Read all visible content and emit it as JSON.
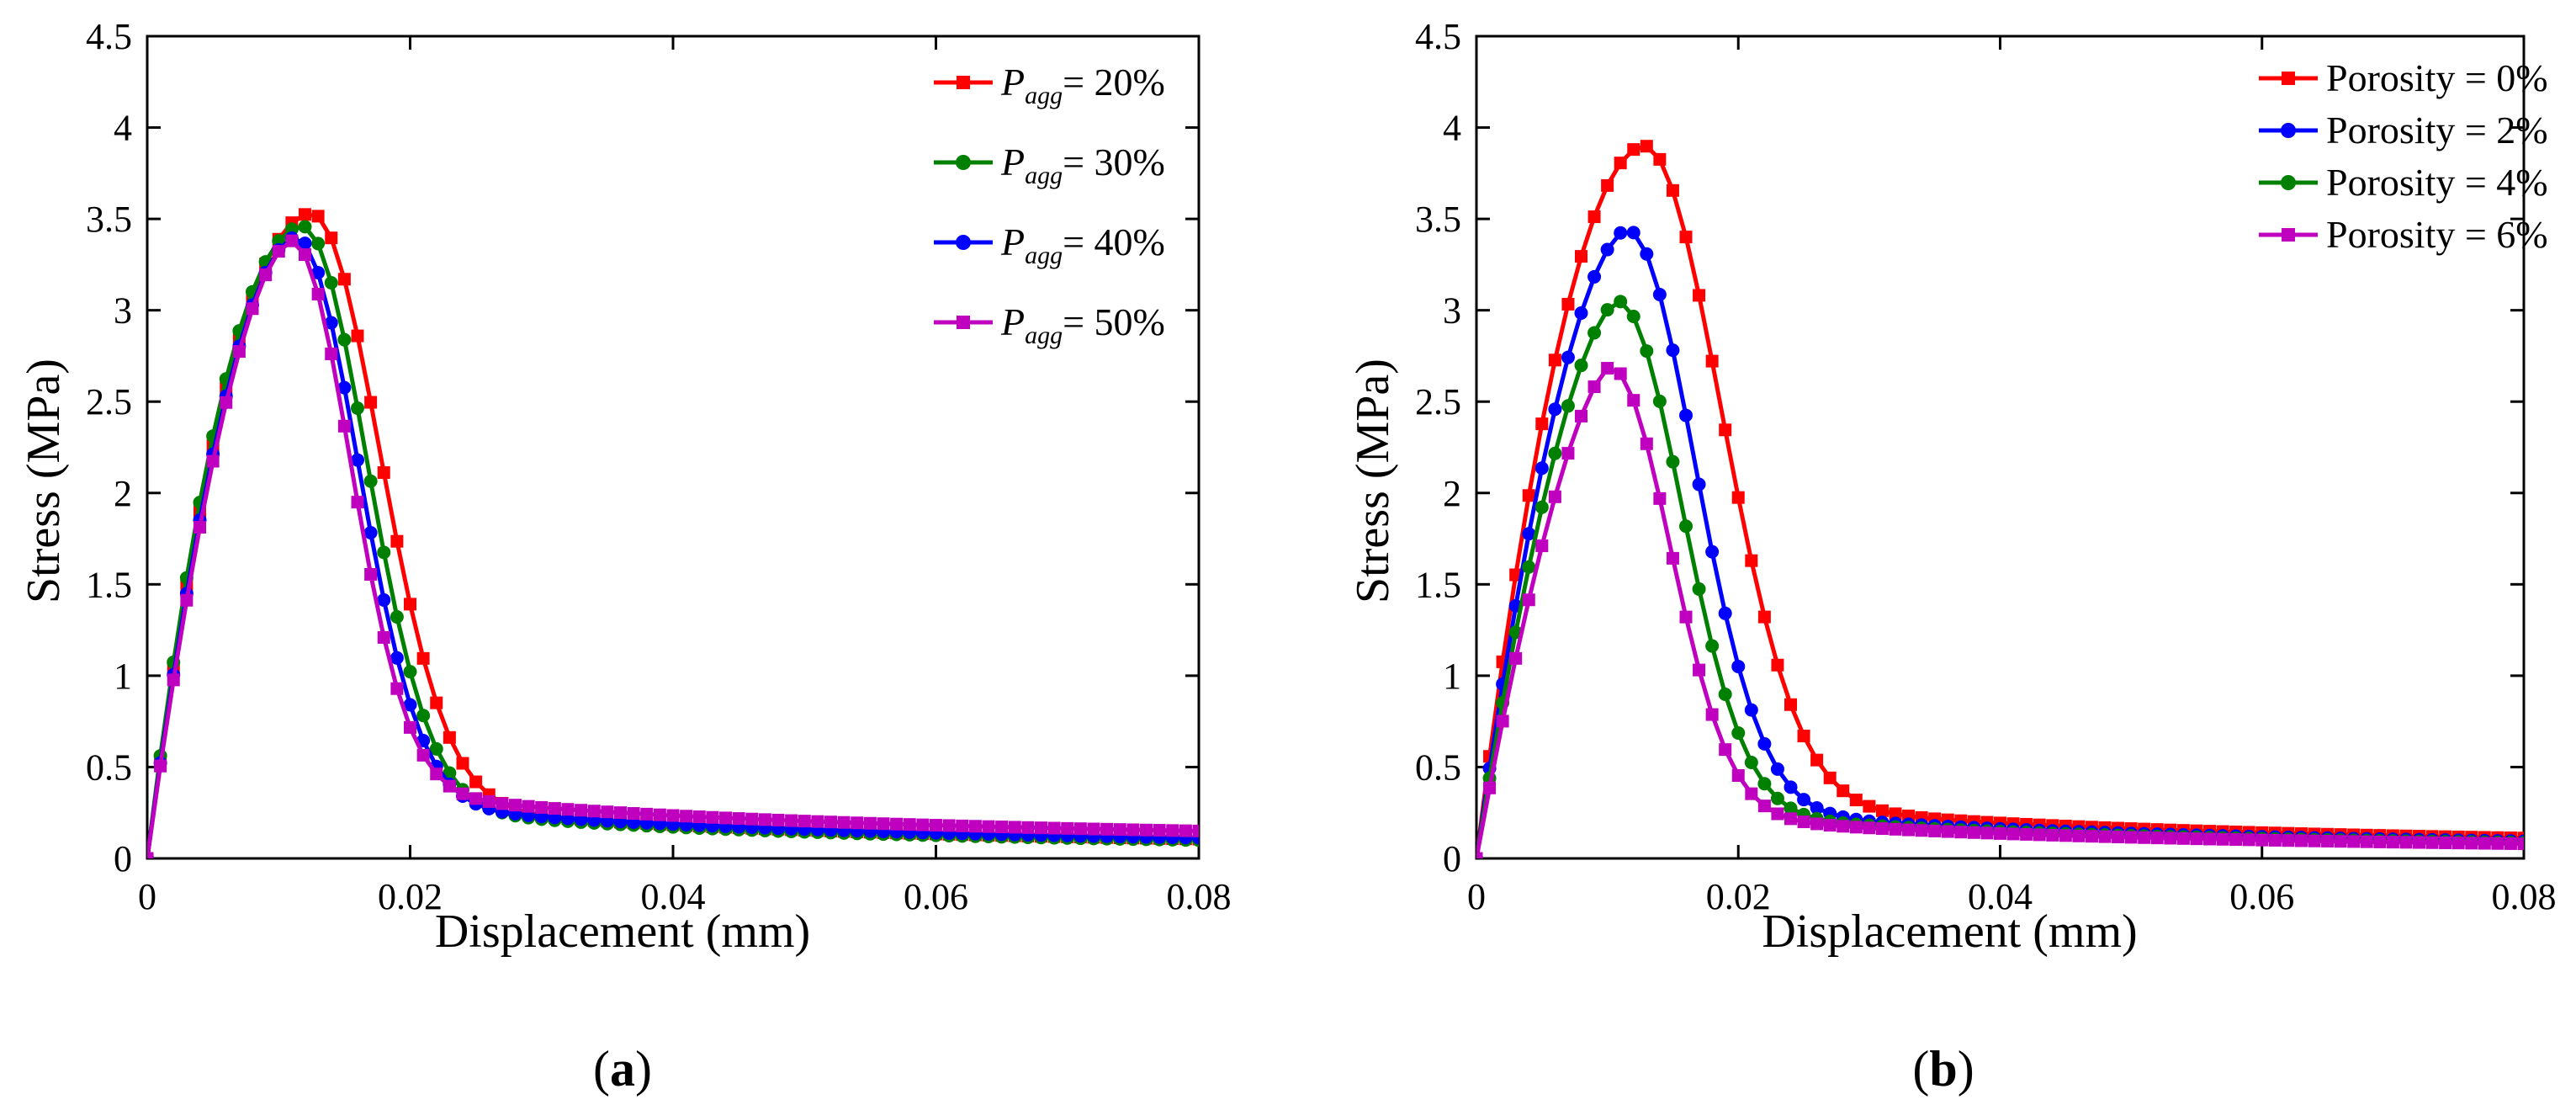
{
  "panels": [
    {
      "id": "a",
      "caption": "(a)",
      "chart_data": {
        "type": "line",
        "xlabel": "Displacement (mm)",
        "ylabel": "Stress (MPa)",
        "xlim": [
          0,
          0.08
        ],
        "ylim": [
          0,
          4.5
        ],
        "xticks": [
          0,
          0.02,
          0.04,
          0.06,
          0.08
        ],
        "xtick_labels": [
          "0",
          "0.02",
          "0.04",
          "0.06",
          "0.08"
        ],
        "yticks": [
          0,
          0.5,
          1,
          1.5,
          2,
          2.5,
          3,
          3.5,
          4,
          4.5
        ],
        "ytick_labels": [
          "0",
          "0.5",
          "1",
          "1.5",
          "2",
          "2.5",
          "3",
          "3.5",
          "4",
          "4.5"
        ],
        "legend_position": "top-right",
        "series": [
          {
            "name_main": "P",
            "name_sub": "agg",
            "name_tail": "= 20%",
            "color": "#ff0000",
            "marker": "square",
            "peak_x": 0.0125,
            "peak_y": 3.53,
            "rise_exp": 2.0,
            "fall_width": 0.0072,
            "residual": 0.4,
            "tail_exp": 0.9
          },
          {
            "name_main": "P",
            "name_sub": "agg",
            "name_tail": "= 30%",
            "color": "#008000",
            "marker": "circle",
            "peak_x": 0.0118,
            "peak_y": 3.46,
            "rise_exp": 2.0,
            "fall_width": 0.0068,
            "residual": 0.38,
            "tail_exp": 0.9
          },
          {
            "name_main": "P",
            "name_sub": "agg",
            "name_tail": "= 40%",
            "color": "#0000ff",
            "marker": "circle",
            "peak_x": 0.0113,
            "peak_y": 3.4,
            "rise_exp": 1.8,
            "fall_width": 0.0066,
            "residual": 0.4,
            "tail_exp": 0.85
          },
          {
            "name_main": "P",
            "name_sub": "agg",
            "name_tail": "= 50%",
            "color": "#bf00bf",
            "marker": "square",
            "peak_x": 0.011,
            "peak_y": 3.38,
            "rise_exp": 1.7,
            "fall_width": 0.0062,
            "residual": 0.46,
            "tail_exp": 0.75
          }
        ]
      }
    },
    {
      "id": "b",
      "caption": "(b)",
      "chart_data": {
        "type": "line",
        "xlabel": "Displacement (mm)",
        "ylabel": "Stress (MPa)",
        "xlim": [
          0,
          0.08
        ],
        "ylim": [
          0,
          4.5
        ],
        "xticks": [
          0,
          0.02,
          0.04,
          0.06,
          0.08
        ],
        "xtick_labels": [
          "0",
          "0.02",
          "0.04",
          "0.06",
          "0.08"
        ],
        "yticks": [
          0,
          0.5,
          1,
          1.5,
          2,
          2.5,
          3,
          3.5,
          4,
          4.5
        ],
        "ytick_labels": [
          "0",
          "0.5",
          "1",
          "1.5",
          "2",
          "2.5",
          "3",
          "3.5",
          "4",
          "4.5"
        ],
        "legend_position": "top-right",
        "series": [
          {
            "name": "Porosity = 0%",
            "color": "#ff0000",
            "marker": "square",
            "peak_x": 0.0128,
            "peak_y": 3.9,
            "rise_exp": 1.9,
            "fall_width": 0.0082,
            "residual": 0.42,
            "tail_exp": 0.9
          },
          {
            "name": "Porosity = 2%",
            "color": "#0000ff",
            "marker": "circle",
            "peak_x": 0.0115,
            "peak_y": 3.44,
            "rise_exp": 1.7,
            "fall_width": 0.0072,
            "residual": 0.36,
            "tail_exp": 0.9
          },
          {
            "name": "Porosity = 4%",
            "color": "#008000",
            "marker": "circle",
            "peak_x": 0.0108,
            "peak_y": 3.05,
            "rise_exp": 1.6,
            "fall_width": 0.0068,
            "residual": 0.33,
            "tail_exp": 0.9
          },
          {
            "name": "Porosity = 6%",
            "color": "#bf00bf",
            "marker": "square",
            "peak_x": 0.0102,
            "peak_y": 2.69,
            "rise_exp": 1.5,
            "fall_width": 0.0064,
            "residual": 0.31,
            "tail_exp": 0.9
          }
        ]
      }
    }
  ]
}
